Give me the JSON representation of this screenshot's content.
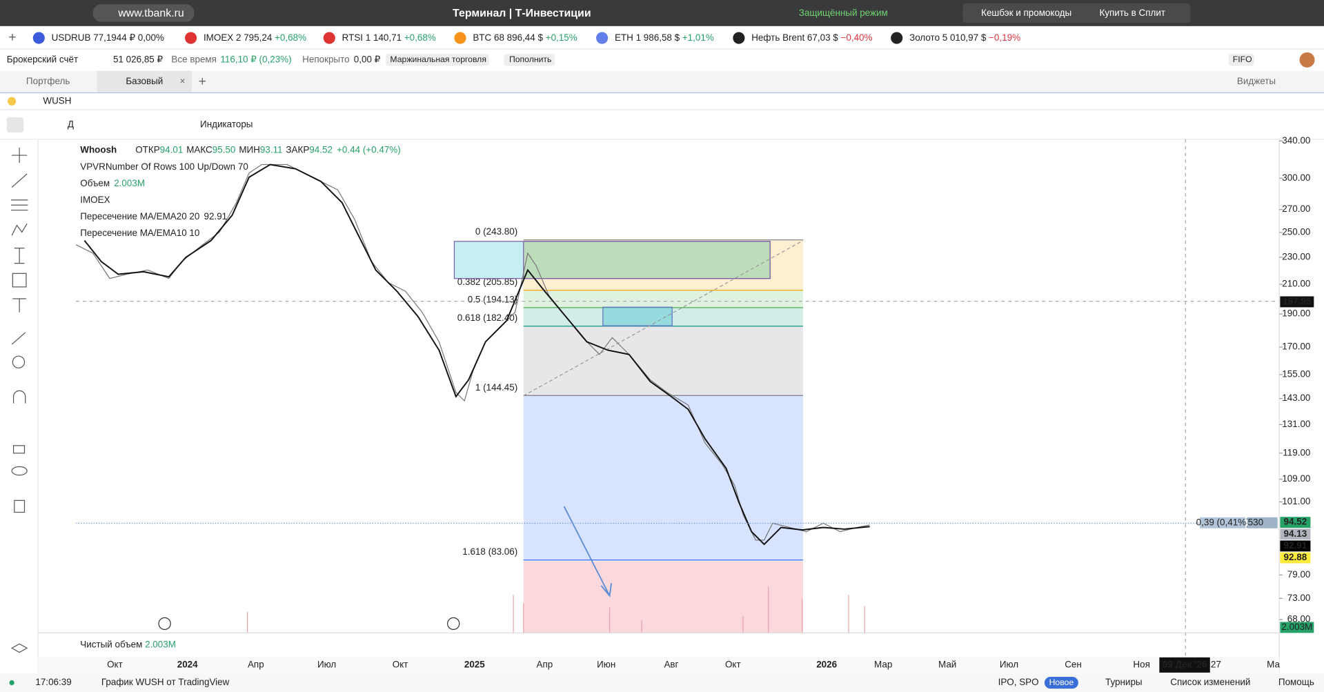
{
  "browser": {
    "url": "www.tbank.ru",
    "title": "Терминал | Т-Инвестиции",
    "secure_mode": "Защищённый режим",
    "extensions": [
      "Кешбэк и промокоды",
      "Купить в Сплит"
    ]
  },
  "tickers": [
    {
      "name": "USDRUB",
      "price": "77,1944 ₽",
      "change": "0,00%",
      "color": "#222222"
    },
    {
      "name": "IMOEX",
      "price": "2 795,24",
      "change": "+0,68%",
      "color": "#26a269"
    },
    {
      "name": "RTSI",
      "price": "1 140,71",
      "change": "+0,68%",
      "color": "#26a269"
    },
    {
      "name": "BTC",
      "price": "68 896,44 $",
      "change": "+0,15%",
      "color": "#26a269"
    },
    {
      "name": "ETH",
      "price": "1 986,58 $",
      "change": "+1,01%",
      "color": "#26a269"
    },
    {
      "name": "Нефть Brent",
      "price": "67,03 $",
      "change": "−0,40%",
      "color": "#e0323c"
    },
    {
      "name": "Золото",
      "price": "5 010,97 $",
      "change": "−0,19%",
      "color": "#e0323c"
    }
  ],
  "account": {
    "name": "Брокерский счёт",
    "balance": "51 026,85 ₽",
    "period": "Все время",
    "profit": "116,10 ₽ (0,23%)",
    "uncovered_label": "Непокрыто",
    "uncovered": "0,00 ₽",
    "margin": "Маржинальная торговля",
    "deposit": "Пополнить",
    "method": "FIFO"
  },
  "tabs": [
    "Портфель",
    "Базовый"
  ],
  "widgets": "Виджеты",
  "symbol": "WUSH",
  "toolbar": {
    "interval": "Д",
    "indicators": "Индикаторы"
  },
  "legend": {
    "name": "Whoosh",
    "ohlc": [
      {
        "label": "ОТКР",
        "value": "94.01"
      },
      {
        "label": "МАКС",
        "value": "95.50"
      },
      {
        "label": "МИН",
        "value": "93.11"
      },
      {
        "label": "ЗАКР",
        "value": "94.52"
      }
    ],
    "change": "+0.44 (+0.47%)",
    "lines": [
      {
        "text": "VPVRNumber Of Rows 100 Up/Down 70",
        "value": ""
      },
      {
        "text": "Объем",
        "value": "2.003M"
      },
      {
        "text": "IMOEX",
        "value": ""
      },
      {
        "text": "Пересечение MA/EMA20 20",
        "value": "92.91"
      },
      {
        "text": "Пересечение MA/EMA10 10",
        "value": ""
      }
    ]
  },
  "net_volume": {
    "label": "Чистый объем",
    "value": "2.003M"
  },
  "chart": {
    "log_scale": true,
    "ylim": [
      65,
      342
    ],
    "yticks": [
      {
        "value": 340,
        "label": "340.00"
      },
      {
        "value": 300,
        "label": "300.00"
      },
      {
        "value": 270,
        "label": "270.00"
      },
      {
        "value": 250,
        "label": "250.00"
      },
      {
        "value": 230,
        "label": "230.00"
      },
      {
        "value": 210,
        "label": "210.00"
      },
      {
        "value": 190,
        "label": "190.00"
      },
      {
        "value": 170,
        "label": "170.00"
      },
      {
        "value": 155,
        "label": "155.00"
      },
      {
        "value": 143,
        "label": "143.00"
      },
      {
        "value": 131,
        "label": "131.00"
      },
      {
        "value": 119,
        "label": "119.00"
      },
      {
        "value": 109,
        "label": "109.00"
      },
      {
        "value": 101,
        "label": "101.00"
      },
      {
        "value": 79,
        "label": "79.00"
      },
      {
        "value": 73,
        "label": "73.00"
      },
      {
        "value": 68,
        "label": "68.00"
      }
    ],
    "fib_levels": [
      {
        "label": "0 (243.80)",
        "value": 243.8,
        "color": "#787b86"
      },
      {
        "label": "0.382 (205.85)",
        "value": 205.85,
        "color": "#f7a600"
      },
      {
        "label": "0.5 (194.13)",
        "value": 194.13,
        "color": "#4caf50"
      },
      {
        "label": "0.618 (182.40)",
        "value": 182.4,
        "color": "#089981"
      },
      {
        "label": "1 (144.45)",
        "value": 144.45,
        "color": "#787b86"
      },
      {
        "label": "1.618 (83.06)",
        "value": 83.06,
        "color": "#2962ff"
      }
    ],
    "price_labels": [
      {
        "value": 94.52,
        "label": "94.52",
        "color": "#26a269"
      },
      {
        "value": 94.13,
        "label": "94.13",
        "color": "#b2b5be"
      },
      {
        "value": 92.91,
        "label": "92.91",
        "color": "#000000"
      },
      {
        "value": 92.88,
        "label": "92.88",
        "color": "#ffeb3b"
      }
    ],
    "crosshair": {
      "value": 197.96,
      "label": "197.96"
    },
    "volume_label": "2.003M",
    "change_label": "0,39 (0,41%)",
    "qty": "530",
    "dates": [
      "Окт",
      "2024",
      "Апр",
      "Июл",
      "Окт",
      "2025",
      "Апр",
      "Июн",
      "Авг",
      "Окт",
      "2026",
      "Мар",
      "Май",
      "Июл",
      "Сен",
      "Ноя",
      "09 Дек '26",
      "27",
      "Ма"
    ]
  },
  "footer": {
    "time": "17:06:39",
    "source": "График WUSH от TradingView",
    "ipo": "IPO, SPO",
    "new": "Новое",
    "tournaments": "Турниры",
    "changes": "Список изменений",
    "help": "Помощь"
  }
}
